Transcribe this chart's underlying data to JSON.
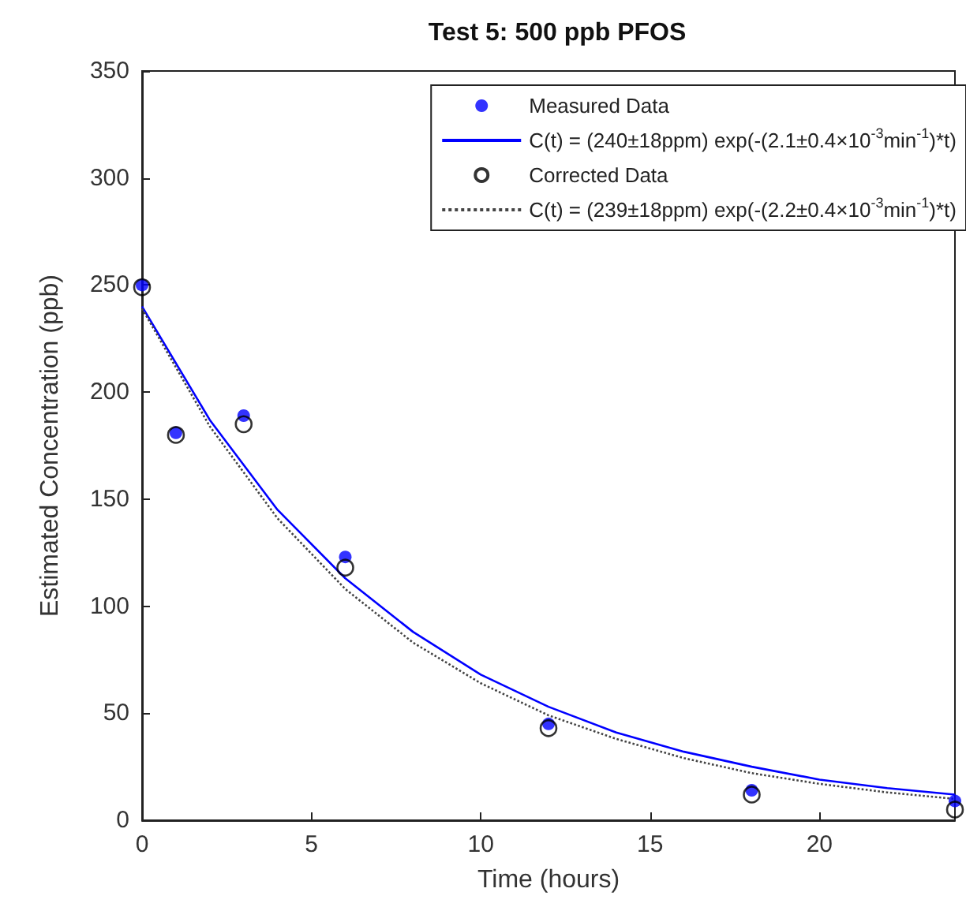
{
  "chart_data": {
    "type": "scatter",
    "title": "Test 5: 500 ppb PFOS",
    "xlabel": "Time (hours)",
    "ylabel": "Estimated Concentration (ppb)",
    "xlim": [
      0,
      24
    ],
    "xticks": [
      0,
      5,
      10,
      15,
      20
    ],
    "ylim": [
      0,
      350
    ],
    "yticks": [
      0,
      50,
      100,
      150,
      200,
      250,
      300,
      350
    ],
    "grid": false,
    "legend": "top right",
    "series": [
      {
        "name": "Measured Data",
        "type": "scatter",
        "marker": "circle",
        "color": "#0000ff",
        "x": [
          0,
          1,
          3,
          6,
          12,
          18,
          24
        ],
        "values": [
          250,
          181,
          189,
          123,
          45,
          14,
          9
        ]
      },
      {
        "name": "C(t) = (240±18ppm) exp(-(2.1±0.4×10$^{-3}$min$^{-1}$)*t)",
        "type": "line",
        "marker": "none",
        "line_style": "solid",
        "color": "#0000ff",
        "x": [
          0,
          2,
          4,
          6,
          8,
          10,
          12,
          14,
          16,
          18,
          20,
          22,
          24
        ],
        "values": [
          240,
          187,
          145,
          113,
          88,
          68,
          53,
          41,
          32,
          25,
          19,
          15,
          12
        ]
      },
      {
        "name": "Corrected Data",
        "type": "scatter",
        "marker": "circle",
        "color": "#000000",
        "x": [
          0,
          1,
          3,
          6,
          12,
          18,
          24
        ],
        "values": [
          249,
          180,
          185,
          118,
          43,
          12,
          5
        ]
      },
      {
        "name": "C(t) = (239±18ppm) exp(-(2.2±0.4×10$^{-3}$min$^{-1}$)*t)",
        "type": "line",
        "marker": "none",
        "line_style": "dotted",
        "color": "#444444",
        "x": [
          0,
          2,
          4,
          6,
          8,
          10,
          12,
          14,
          16,
          18,
          20,
          22,
          24
        ],
        "values": [
          239,
          184,
          141,
          108,
          83,
          64,
          49,
          38,
          29,
          22,
          17,
          13,
          10
        ]
      }
    ]
  }
}
